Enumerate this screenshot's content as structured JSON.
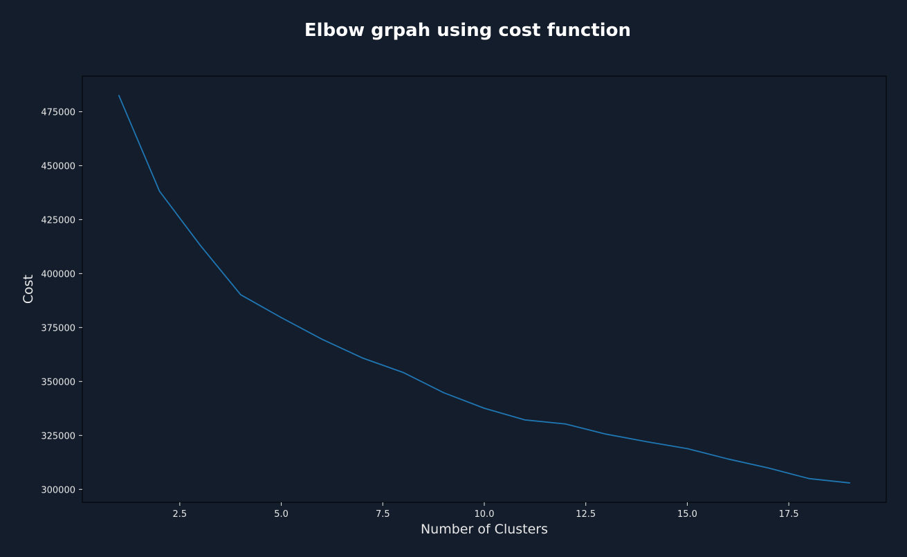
{
  "colors": {
    "background": "#141d2b",
    "plot_background": "#141d2b",
    "axes_edge": "#000000",
    "text": "#ffffff",
    "tick": "#e8e8e8",
    "line": "#1f77b4"
  },
  "chart_data": {
    "type": "line",
    "title": "Elbow grpah using cost function",
    "xlabel": "Number of Clusters",
    "ylabel": "Cost",
    "grid": false,
    "legend": "none",
    "xlim": [
      0.1,
      19.9
    ],
    "ylim": [
      294000,
      491500
    ],
    "xticks": [
      2.5,
      5.0,
      7.5,
      10.0,
      12.5,
      15.0,
      17.5
    ],
    "xtick_labels": [
      "2.5",
      "5.0",
      "7.5",
      "10.0",
      "12.5",
      "15.0",
      "17.5"
    ],
    "yticks": [
      300000,
      325000,
      350000,
      375000,
      400000,
      425000,
      450000,
      475000
    ],
    "ytick_labels": [
      "300000",
      "325000",
      "350000",
      "375000",
      "400000",
      "425000",
      "450000",
      "475000"
    ],
    "series": [
      {
        "x": [
          1,
          2,
          3,
          4,
          5,
          6,
          7,
          8,
          9,
          10,
          11,
          12,
          13,
          14,
          15,
          16,
          17,
          18,
          19
        ],
        "values": [
          482500,
          438200,
          413200,
          390200,
          379600,
          369600,
          360900,
          354200,
          344800,
          337600,
          332200,
          330300,
          325600,
          322100,
          318900,
          314100,
          309900,
          305000,
          303000
        ]
      }
    ]
  }
}
